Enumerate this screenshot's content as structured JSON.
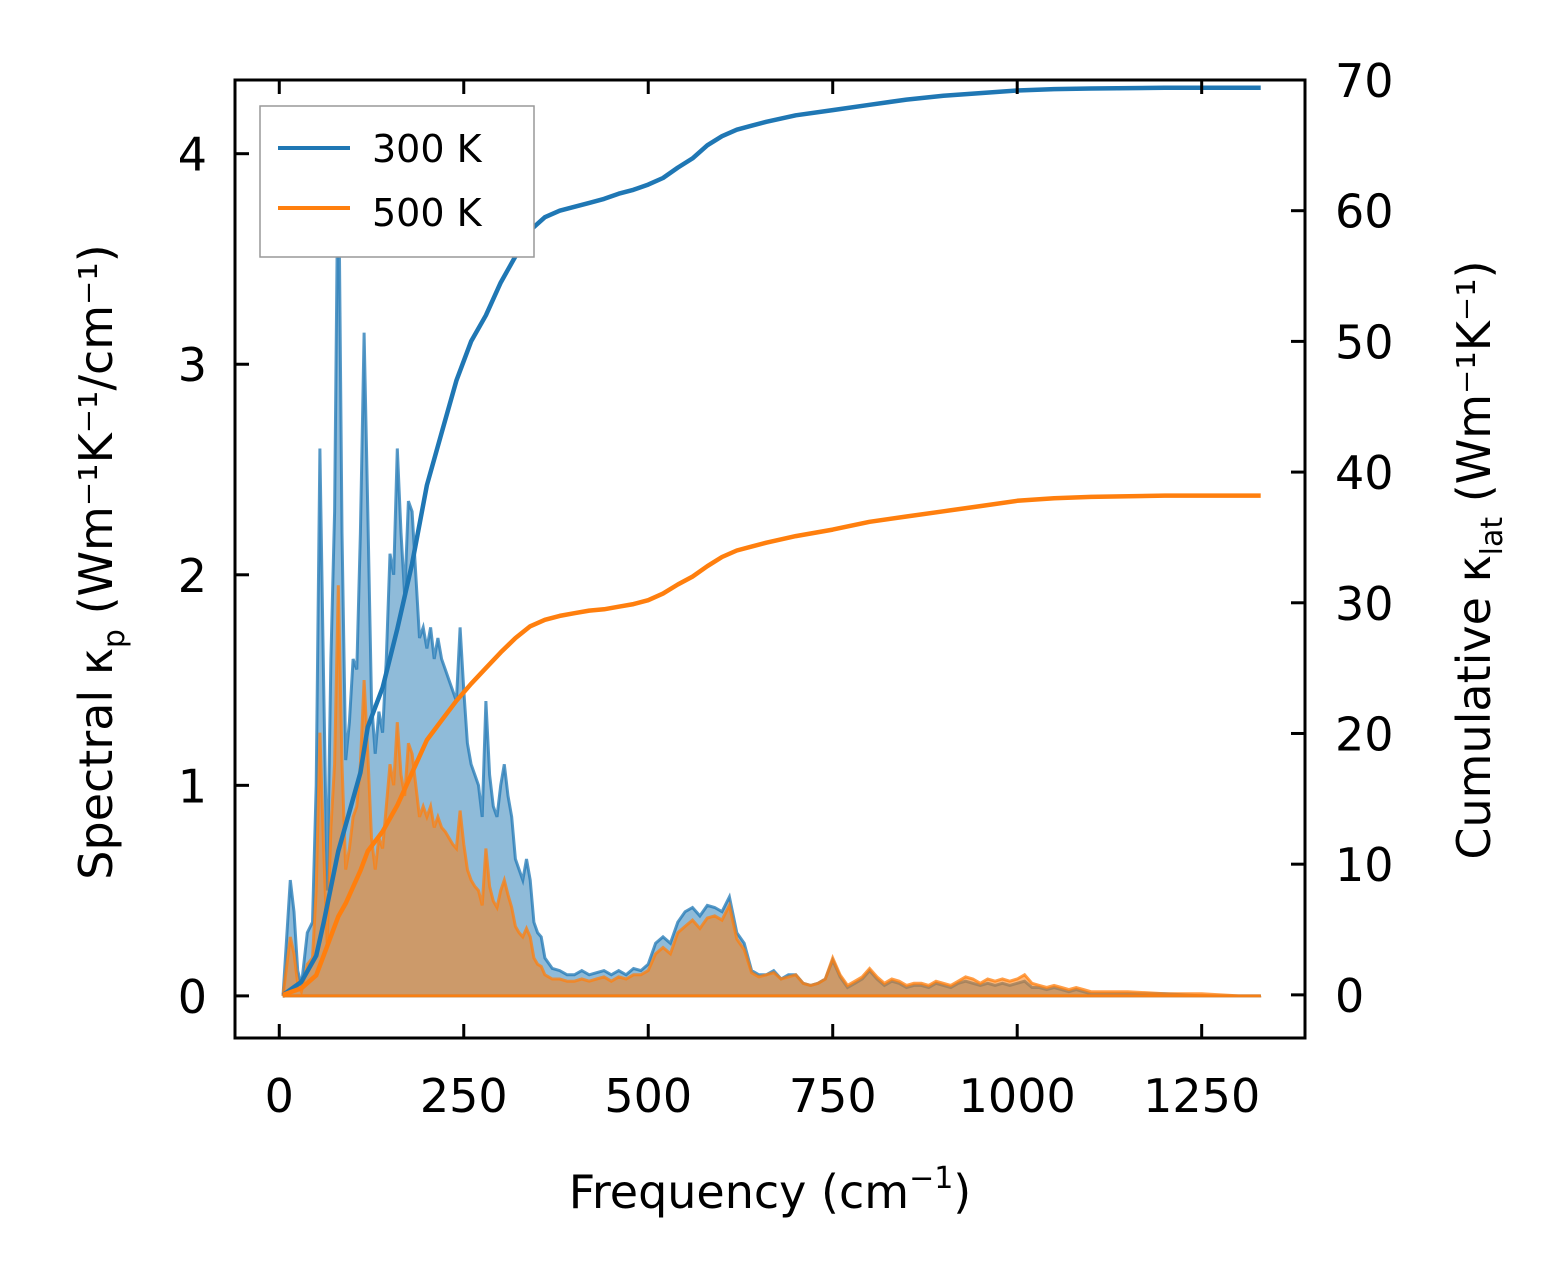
{
  "chart_data": {
    "type": "line",
    "xlabel": "Frequency (cm",
    "xlabel_sup": "−1",
    "xlabel_tail": ")",
    "ylabel_left": "Spectral κ",
    "ylabel_left_sub": "p",
    "ylabel_left_tail": " (Wm⁻¹K⁻¹/cm⁻¹)",
    "ylabel_right": "Cumulative κ",
    "ylabel_right_sub": "lat",
    "ylabel_right_tail": " (Wm⁻¹K⁻¹)",
    "xlim": [
      -60,
      1390
    ],
    "ylim_left": [
      -0.2,
      4.35
    ],
    "ylim_right": [
      -3.3,
      70
    ],
    "xticks": [
      0,
      250,
      500,
      750,
      1000,
      1250
    ],
    "xtick_labels": [
      "0",
      "250",
      "500",
      "750",
      "1000",
      "1250"
    ],
    "yticks_left": [
      0,
      1,
      2,
      3,
      4
    ],
    "ytick_labels_left": [
      "0",
      "1",
      "2",
      "3",
      "4"
    ],
    "yticks_right": [
      0,
      10,
      20,
      30,
      40,
      50,
      60,
      70
    ],
    "ytick_labels_right": [
      "0",
      "10",
      "20",
      "30",
      "40",
      "50",
      "60",
      "70"
    ],
    "grid": false,
    "legend_position": "top-left",
    "series": [
      {
        "name": "300 K",
        "color": "#1f77b4",
        "spectral": {
          "x": [
            5,
            15,
            20,
            25,
            30,
            38,
            45,
            50,
            55,
            60,
            65,
            70,
            75,
            80,
            85,
            90,
            95,
            100,
            105,
            110,
            115,
            120,
            125,
            130,
            135,
            140,
            145,
            150,
            155,
            160,
            165,
            170,
            175,
            180,
            185,
            190,
            195,
            200,
            205,
            210,
            215,
            220,
            225,
            230,
            235,
            240,
            245,
            250,
            255,
            260,
            265,
            270,
            275,
            280,
            285,
            290,
            295,
            300,
            305,
            310,
            315,
            320,
            325,
            330,
            335,
            340,
            345,
            350,
            355,
            360,
            370,
            380,
            390,
            400,
            410,
            420,
            430,
            440,
            450,
            460,
            470,
            480,
            490,
            500,
            510,
            520,
            530,
            540,
            550,
            560,
            570,
            580,
            590,
            600,
            610,
            620,
            630,
            640,
            650,
            660,
            670,
            680,
            690,
            700,
            710,
            720,
            730,
            740,
            750,
            760,
            770,
            780,
            790,
            800,
            810,
            820,
            830,
            840,
            850,
            860,
            870,
            880,
            890,
            900,
            910,
            920,
            930,
            940,
            950,
            960,
            970,
            980,
            990,
            1000,
            1010,
            1020,
            1030,
            1040,
            1050,
            1060,
            1070,
            1080,
            1090,
            1100,
            1120,
            1150,
            1200,
            1250,
            1300,
            1330
          ],
          "y": [
            0.0,
            0.55,
            0.4,
            0.12,
            0.05,
            0.3,
            0.35,
            1.0,
            2.6,
            1.5,
            0.5,
            1.6,
            2.3,
            4.12,
            2.2,
            1.12,
            1.3,
            1.6,
            1.55,
            2.2,
            3.15,
            2.3,
            1.4,
            1.15,
            1.35,
            1.25,
            1.6,
            2.1,
            2.0,
            2.6,
            2.2,
            1.9,
            2.35,
            2.3,
            2.0,
            1.7,
            1.75,
            1.65,
            1.75,
            1.6,
            1.7,
            1.6,
            1.55,
            1.5,
            1.45,
            1.4,
            1.75,
            1.45,
            1.2,
            1.1,
            1.05,
            1.0,
            0.85,
            1.4,
            1.05,
            0.9,
            0.85,
            1.0,
            1.1,
            0.95,
            0.85,
            0.65,
            0.6,
            0.55,
            0.65,
            0.55,
            0.35,
            0.3,
            0.28,
            0.18,
            0.13,
            0.12,
            0.1,
            0.1,
            0.12,
            0.1,
            0.11,
            0.12,
            0.1,
            0.12,
            0.1,
            0.13,
            0.12,
            0.15,
            0.25,
            0.28,
            0.25,
            0.35,
            0.4,
            0.42,
            0.38,
            0.43,
            0.42,
            0.4,
            0.47,
            0.3,
            0.25,
            0.12,
            0.1,
            0.1,
            0.12,
            0.08,
            0.1,
            0.1,
            0.06,
            0.05,
            0.06,
            0.08,
            0.17,
            0.09,
            0.04,
            0.06,
            0.08,
            0.12,
            0.08,
            0.05,
            0.07,
            0.06,
            0.04,
            0.05,
            0.05,
            0.04,
            0.06,
            0.05,
            0.04,
            0.06,
            0.07,
            0.06,
            0.05,
            0.06,
            0.05,
            0.06,
            0.05,
            0.06,
            0.07,
            0.04,
            0.04,
            0.03,
            0.04,
            0.03,
            0.02,
            0.03,
            0.02,
            0.01,
            0.01,
            0.01,
            0.01,
            0.0,
            0.0,
            0.0
          ]
        },
        "cumulative": {
          "x": [
            5,
            30,
            50,
            60,
            80,
            90,
            110,
            120,
            140,
            160,
            180,
            200,
            220,
            240,
            260,
            280,
            300,
            320,
            340,
            360,
            380,
            400,
            420,
            440,
            460,
            480,
            500,
            520,
            540,
            560,
            580,
            600,
            620,
            640,
            660,
            700,
            750,
            800,
            850,
            900,
            950,
            1000,
            1050,
            1100,
            1200,
            1330
          ],
          "y": [
            0.0,
            1.0,
            3.0,
            5.5,
            11.0,
            13.0,
            17.0,
            20.5,
            23.5,
            28.0,
            33.0,
            39.0,
            43.0,
            47.0,
            50.0,
            52.0,
            54.5,
            56.5,
            58.5,
            59.5,
            60.0,
            60.3,
            60.6,
            60.9,
            61.3,
            61.6,
            62.0,
            62.5,
            63.3,
            64.0,
            65.0,
            65.7,
            66.2,
            66.5,
            66.8,
            67.3,
            67.7,
            68.1,
            68.5,
            68.8,
            69.0,
            69.2,
            69.3,
            69.35,
            69.4,
            69.4
          ]
        }
      },
      {
        "name": "500 K",
        "color": "#ff7f0e",
        "spectral": {
          "x": [
            5,
            15,
            20,
            25,
            30,
            38,
            45,
            50,
            55,
            60,
            65,
            70,
            75,
            80,
            85,
            90,
            95,
            100,
            105,
            110,
            115,
            120,
            125,
            130,
            135,
            140,
            145,
            150,
            155,
            160,
            165,
            170,
            175,
            180,
            185,
            190,
            195,
            200,
            205,
            210,
            215,
            220,
            225,
            230,
            235,
            240,
            245,
            250,
            255,
            260,
            265,
            270,
            275,
            280,
            285,
            290,
            295,
            300,
            305,
            310,
            315,
            320,
            325,
            330,
            335,
            340,
            345,
            350,
            355,
            360,
            370,
            380,
            390,
            400,
            410,
            420,
            430,
            440,
            450,
            460,
            470,
            480,
            490,
            500,
            510,
            520,
            530,
            540,
            550,
            560,
            570,
            580,
            590,
            600,
            610,
            620,
            630,
            640,
            650,
            660,
            670,
            680,
            690,
            700,
            710,
            720,
            730,
            740,
            750,
            760,
            770,
            780,
            790,
            800,
            810,
            820,
            830,
            840,
            850,
            860,
            870,
            880,
            890,
            900,
            910,
            920,
            930,
            940,
            950,
            960,
            970,
            980,
            990,
            1000,
            1010,
            1020,
            1030,
            1040,
            1050,
            1060,
            1070,
            1080,
            1090,
            1100,
            1120,
            1150,
            1200,
            1250,
            1300,
            1330
          ],
          "y": [
            0.0,
            0.28,
            0.2,
            0.06,
            0.02,
            0.15,
            0.18,
            0.5,
            1.25,
            0.7,
            0.25,
            0.8,
            1.1,
            1.95,
            1.1,
            0.6,
            0.7,
            0.85,
            0.9,
            1.1,
            1.5,
            1.15,
            0.75,
            0.6,
            0.75,
            0.7,
            0.9,
            1.1,
            1.0,
            1.3,
            1.05,
            0.95,
            1.2,
            1.15,
            1.0,
            0.85,
            0.9,
            0.85,
            0.9,
            0.8,
            0.85,
            0.8,
            0.78,
            0.75,
            0.72,
            0.7,
            0.88,
            0.72,
            0.6,
            0.55,
            0.52,
            0.5,
            0.43,
            0.7,
            0.52,
            0.45,
            0.42,
            0.5,
            0.55,
            0.48,
            0.42,
            0.33,
            0.3,
            0.28,
            0.32,
            0.28,
            0.18,
            0.15,
            0.14,
            0.1,
            0.08,
            0.08,
            0.07,
            0.07,
            0.08,
            0.07,
            0.08,
            0.09,
            0.07,
            0.09,
            0.08,
            0.1,
            0.1,
            0.12,
            0.2,
            0.23,
            0.2,
            0.3,
            0.33,
            0.36,
            0.32,
            0.37,
            0.38,
            0.36,
            0.43,
            0.27,
            0.22,
            0.11,
            0.09,
            0.1,
            0.11,
            0.08,
            0.09,
            0.1,
            0.06,
            0.05,
            0.06,
            0.08,
            0.18,
            0.1,
            0.05,
            0.07,
            0.09,
            0.13,
            0.09,
            0.06,
            0.08,
            0.07,
            0.05,
            0.06,
            0.06,
            0.05,
            0.07,
            0.06,
            0.05,
            0.07,
            0.09,
            0.08,
            0.06,
            0.08,
            0.07,
            0.08,
            0.07,
            0.08,
            0.1,
            0.06,
            0.05,
            0.04,
            0.05,
            0.04,
            0.03,
            0.04,
            0.03,
            0.02,
            0.02,
            0.02,
            0.01,
            0.01,
            0.0,
            0.0
          ]
        },
        "cumulative": {
          "x": [
            5,
            30,
            50,
            60,
            80,
            90,
            110,
            120,
            140,
            160,
            180,
            200,
            220,
            240,
            260,
            280,
            300,
            320,
            340,
            360,
            380,
            400,
            420,
            440,
            460,
            480,
            500,
            520,
            540,
            560,
            580,
            600,
            620,
            640,
            660,
            700,
            750,
            800,
            850,
            900,
            950,
            1000,
            1050,
            1100,
            1200,
            1330
          ],
          "y": [
            0.0,
            0.5,
            1.5,
            3.0,
            6.0,
            7.0,
            9.5,
            11.0,
            12.5,
            14.5,
            17.0,
            19.5,
            21.0,
            22.5,
            23.8,
            25.0,
            26.2,
            27.3,
            28.2,
            28.7,
            29.0,
            29.2,
            29.4,
            29.5,
            29.7,
            29.9,
            30.2,
            30.7,
            31.4,
            32.0,
            32.8,
            33.5,
            34.0,
            34.3,
            34.6,
            35.1,
            35.6,
            36.2,
            36.6,
            37.0,
            37.4,
            37.8,
            38.0,
            38.1,
            38.2,
            38.2
          ]
        }
      }
    ]
  }
}
